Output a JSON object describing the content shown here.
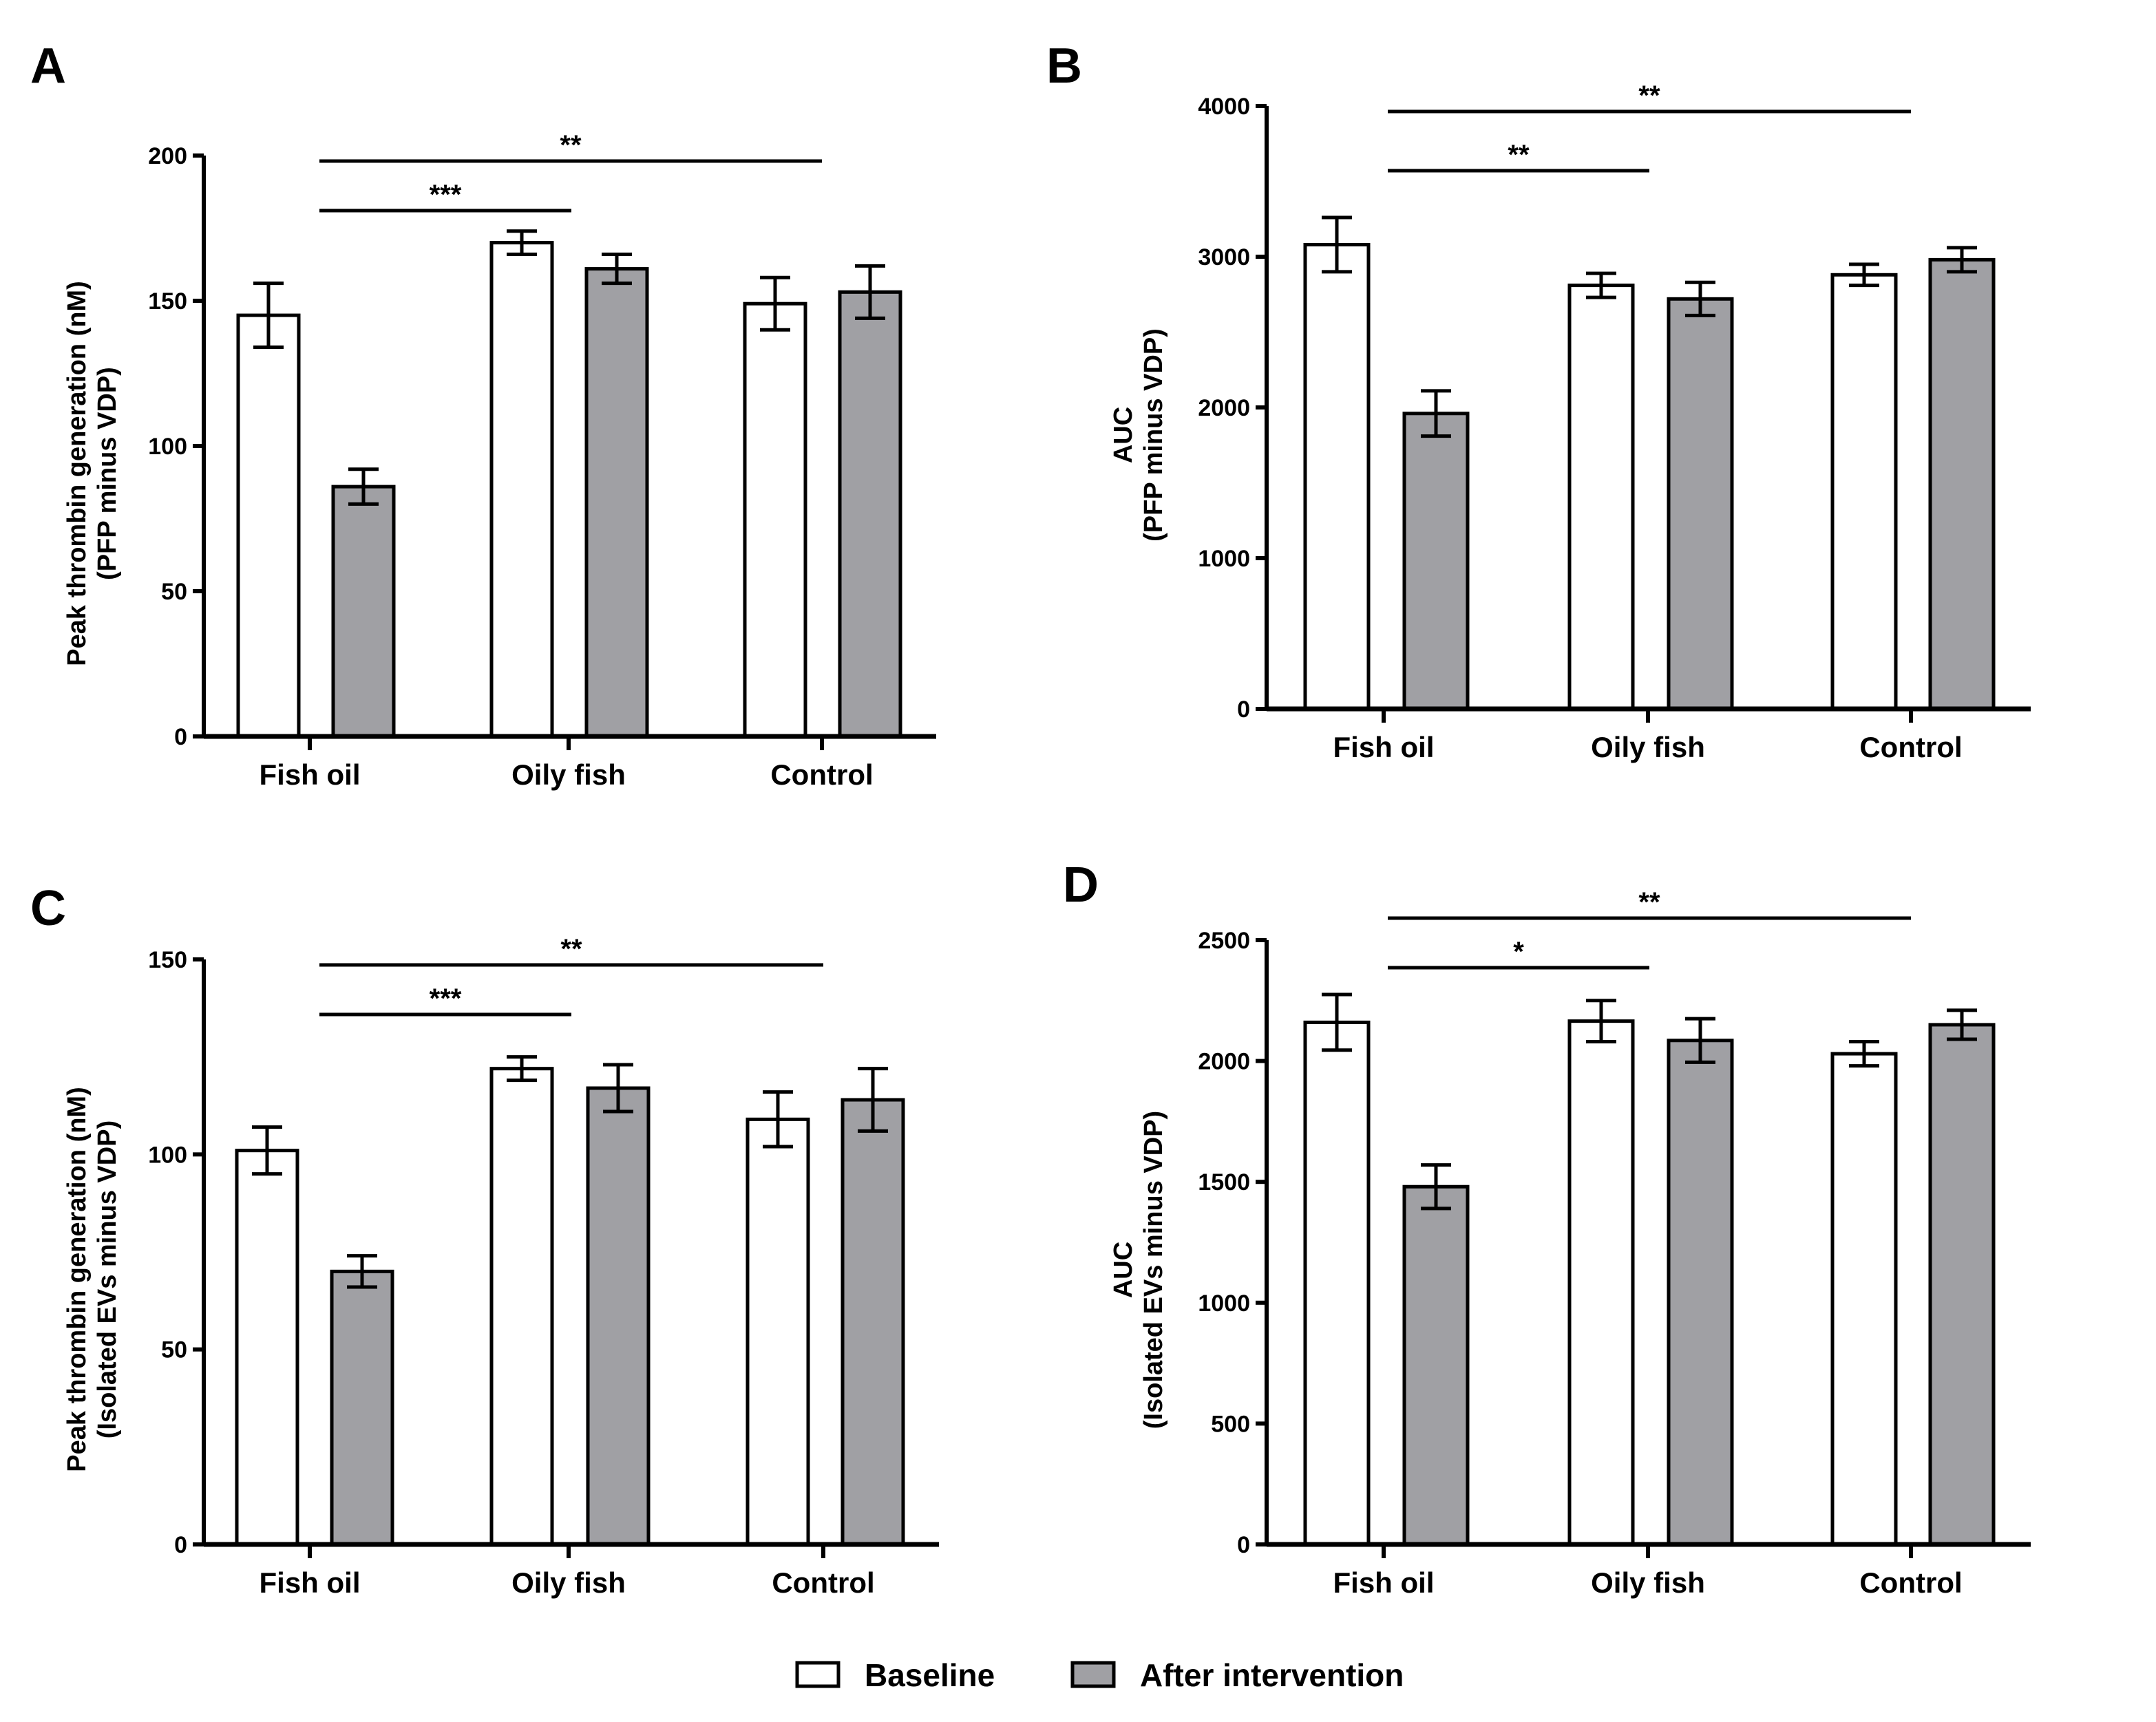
{
  "colors": {
    "baseline": "#ffffff",
    "after": "#a0a0a4",
    "stroke": "#000000"
  },
  "legend": [
    {
      "label": "Baseline",
      "color": "#ffffff"
    },
    {
      "label": "After intervention",
      "color": "#a0a0a4"
    }
  ],
  "chart_data": [
    {
      "panel": "A",
      "type": "bar",
      "categories": [
        "Fish oil",
        "Oily fish",
        "Control"
      ],
      "ylabel": [
        "Peak thrombin generation (nM)",
        "(PFP minus VDP)"
      ],
      "ylim": [
        0,
        200
      ],
      "yticks": [
        0,
        50,
        100,
        150,
        200
      ],
      "series": [
        {
          "name": "Baseline",
          "values": [
            145,
            170,
            149
          ],
          "errors": [
            11,
            4,
            9
          ]
        },
        {
          "name": "After intervention",
          "values": [
            86,
            161,
            153
          ],
          "errors": [
            6,
            5,
            9
          ]
        }
      ],
      "significance": [
        {
          "from": "Fish oil",
          "to": "Oily fish",
          "label": "***"
        },
        {
          "from": "Fish oil",
          "to": "Control",
          "label": "**"
        }
      ]
    },
    {
      "panel": "B",
      "type": "bar",
      "categories": [
        "Fish oil",
        "Oily fish",
        "Control"
      ],
      "ylabel": [
        "AUC",
        "(PFP minus VDP)"
      ],
      "ylim": [
        0,
        4000
      ],
      "yticks": [
        0,
        1000,
        2000,
        3000,
        4000
      ],
      "series": [
        {
          "name": "Baseline",
          "values": [
            3080,
            2810,
            2880
          ],
          "errors": [
            180,
            80,
            70
          ]
        },
        {
          "name": "After intervention",
          "values": [
            1960,
            2720,
            2980
          ],
          "errors": [
            150,
            110,
            80
          ]
        }
      ],
      "significance": [
        {
          "from": "Fish oil",
          "to": "Oily fish",
          "label": "**"
        },
        {
          "from": "Fish oil",
          "to": "Control",
          "label": "**"
        }
      ]
    },
    {
      "panel": "C",
      "type": "bar",
      "categories": [
        "Fish oil",
        "Oily fish",
        "Control"
      ],
      "ylabel": [
        "Peak thrombin generation (nM)",
        "(Isolated EVs minus VDP)"
      ],
      "ylim": [
        0,
        150
      ],
      "yticks": [
        0,
        50,
        100,
        150
      ],
      "series": [
        {
          "name": "Baseline",
          "values": [
            101,
            122,
            109
          ],
          "errors": [
            6,
            3,
            7
          ]
        },
        {
          "name": "After intervention",
          "values": [
            70,
            117,
            114
          ],
          "errors": [
            4,
            6,
            8
          ]
        }
      ],
      "significance": [
        {
          "from": "Fish oil",
          "to": "Oily fish",
          "label": "***"
        },
        {
          "from": "Fish oil",
          "to": "Control",
          "label": "**"
        }
      ]
    },
    {
      "panel": "D",
      "type": "bar",
      "categories": [
        "Fish oil",
        "Oily fish",
        "Control"
      ],
      "ylabel": [
        "AUC",
        "(Isolated EVs minus VDP)"
      ],
      "ylim": [
        0,
        2500
      ],
      "yticks": [
        0,
        500,
        1000,
        1500,
        2000,
        2500
      ],
      "series": [
        {
          "name": "Baseline",
          "values": [
            2160,
            2165,
            2030
          ],
          "errors": [
            115,
            85,
            50
          ]
        },
        {
          "name": "After intervention",
          "values": [
            1480,
            2085,
            2150
          ],
          "errors": [
            90,
            90,
            60
          ]
        }
      ],
      "significance": [
        {
          "from": "Fish oil",
          "to": "Oily fish",
          "label": "*"
        },
        {
          "from": "Fish oil",
          "to": "Control",
          "label": "**"
        }
      ]
    }
  ]
}
